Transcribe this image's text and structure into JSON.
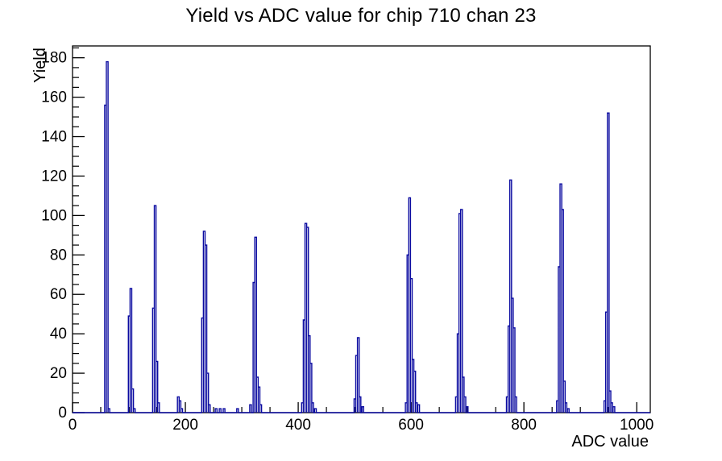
{
  "chart_data": {
    "type": "line",
    "subtype": "step-histogram",
    "title": "Yield vs ADC value for chip 710 chan 23",
    "xlabel": "ADC value",
    "ylabel": "Yield",
    "xlim": [
      0,
      1024
    ],
    "ylim": [
      0,
      186
    ],
    "x_major_ticks": [
      0,
      200,
      400,
      600,
      800,
      1000
    ],
    "x_minor_step": 50,
    "y_major_ticks": [
      0,
      20,
      40,
      60,
      80,
      100,
      120,
      140,
      160,
      180
    ],
    "y_minor_step": 5,
    "grid": false,
    "legend": false,
    "line_color": "#0a0aa0",
    "frame_color": "#000000",
    "bins": [
      [
        57,
        3,
        156
      ],
      [
        60,
        3,
        178
      ],
      [
        63,
        3,
        2
      ],
      [
        99,
        3,
        49
      ],
      [
        102,
        3,
        63
      ],
      [
        105,
        3,
        12
      ],
      [
        108,
        3,
        2
      ],
      [
        142,
        3,
        53
      ],
      [
        145,
        3,
        105
      ],
      [
        148,
        3,
        26
      ],
      [
        151,
        3,
        5
      ],
      [
        186,
        3,
        8
      ],
      [
        189,
        3,
        6
      ],
      [
        192,
        3,
        2
      ],
      [
        229,
        3,
        48
      ],
      [
        232,
        3,
        92
      ],
      [
        235,
        3,
        85
      ],
      [
        238,
        3,
        20
      ],
      [
        241,
        3,
        4
      ],
      [
        253,
        3,
        2
      ],
      [
        260,
        3,
        2
      ],
      [
        267,
        3,
        2
      ],
      [
        291,
        3,
        2
      ],
      [
        314,
        3,
        4
      ],
      [
        320,
        3,
        66
      ],
      [
        323,
        3,
        89
      ],
      [
        326,
        3,
        18
      ],
      [
        329,
        3,
        13
      ],
      [
        332,
        3,
        4
      ],
      [
        406,
        3,
        5
      ],
      [
        409,
        3,
        47
      ],
      [
        412,
        3,
        96
      ],
      [
        415,
        3,
        94
      ],
      [
        418,
        3,
        39
      ],
      [
        421,
        3,
        25
      ],
      [
        424,
        3,
        5
      ],
      [
        429,
        3,
        2
      ],
      [
        499,
        3,
        7
      ],
      [
        502,
        3,
        29
      ],
      [
        505,
        3,
        38
      ],
      [
        508,
        3,
        8
      ],
      [
        513,
        3,
        3
      ],
      [
        590,
        3,
        5
      ],
      [
        593,
        3,
        80
      ],
      [
        596,
        3,
        109
      ],
      [
        599,
        3,
        68
      ],
      [
        602,
        3,
        27
      ],
      [
        605,
        3,
        21
      ],
      [
        608,
        3,
        5
      ],
      [
        612,
        3,
        4
      ],
      [
        679,
        3,
        8
      ],
      [
        682,
        3,
        40
      ],
      [
        685,
        3,
        101
      ],
      [
        688,
        3,
        103
      ],
      [
        691,
        3,
        18
      ],
      [
        694,
        3,
        8
      ],
      [
        698,
        3,
        3
      ],
      [
        769,
        3,
        8
      ],
      [
        772,
        3,
        44
      ],
      [
        775,
        3,
        118
      ],
      [
        778,
        3,
        58
      ],
      [
        781,
        3,
        43
      ],
      [
        784,
        3,
        8
      ],
      [
        858,
        3,
        6
      ],
      [
        861,
        3,
        74
      ],
      [
        864,
        3,
        116
      ],
      [
        867,
        3,
        103
      ],
      [
        870,
        3,
        16
      ],
      [
        873,
        3,
        5
      ],
      [
        877,
        3,
        2
      ],
      [
        942,
        3,
        6
      ],
      [
        945,
        3,
        51
      ],
      [
        948,
        3,
        152
      ],
      [
        951,
        3,
        11
      ],
      [
        954,
        3,
        5
      ],
      [
        958,
        3,
        3
      ]
    ]
  }
}
